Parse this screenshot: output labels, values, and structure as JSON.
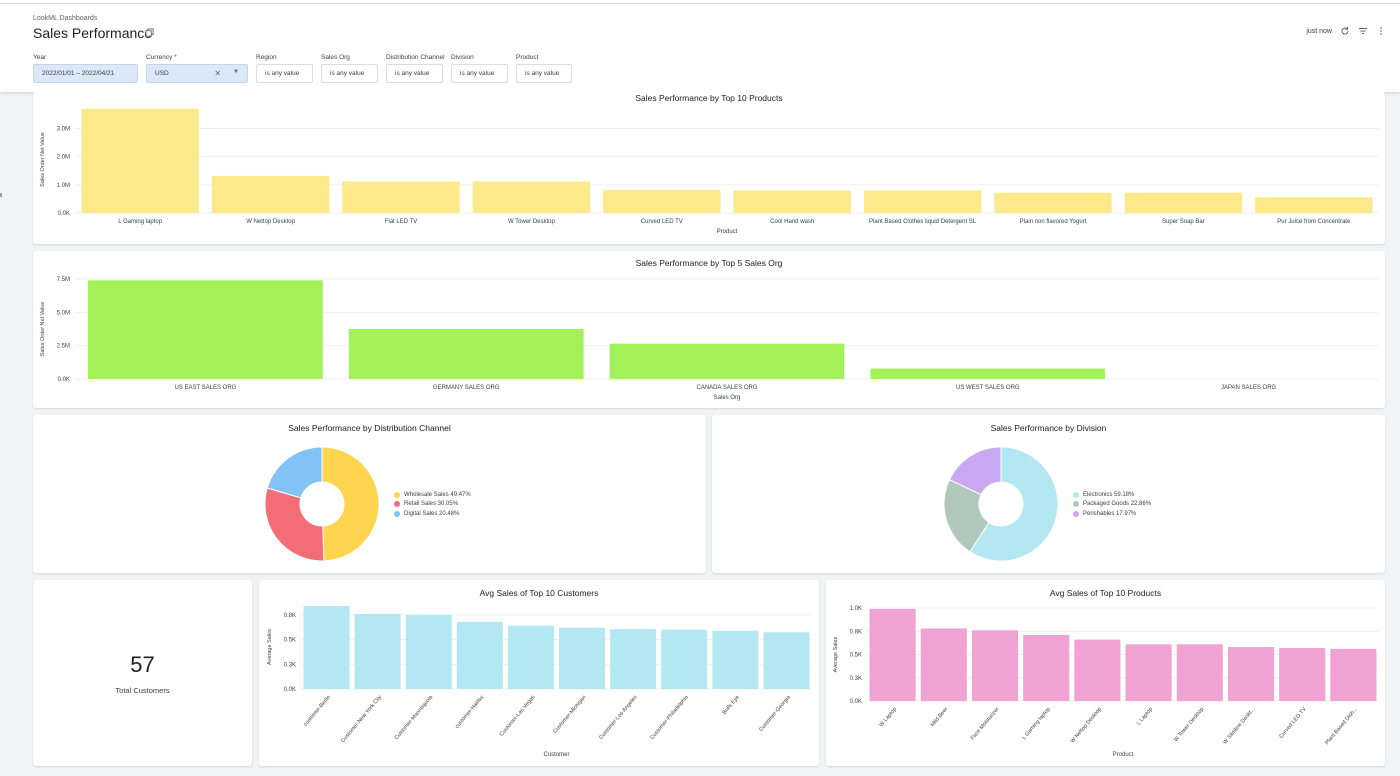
{
  "header": {
    "breadcrumb": "LookML Dashboards",
    "title": "Sales Performance",
    "updated": "just now"
  },
  "filters": [
    {
      "label": "Year",
      "value": "2022/01/01 – 2022/04/21",
      "required": false
    },
    {
      "label": "Currency",
      "value": "USD",
      "required": true
    },
    {
      "label": "Region",
      "value": "is any value",
      "required": false
    },
    {
      "label": "Sales Org",
      "value": "is any value",
      "required": false
    },
    {
      "label": "Distribution Channel",
      "value": "is any value",
      "required": false
    },
    {
      "label": "Division",
      "value": "is any value",
      "required": false
    },
    {
      "label": "Product",
      "value": "is any value",
      "required": false
    }
  ],
  "kpi": {
    "value": "57",
    "label": "Total Customers"
  },
  "colors": {
    "yellow": "#fde98a",
    "green": "#a4f25a",
    "cyan": "#b3e8f2",
    "pink": "#f0a3d2"
  },
  "chart_data": [
    {
      "id": "top10products",
      "type": "bar",
      "title": "Sales Performance by Top 10 Products",
      "xlabel": "Product",
      "ylabel": "Sales Order Net Value",
      "ticks": [
        "0.0K",
        "1.0M",
        "2.0M",
        "3.0M"
      ],
      "tick_values": [
        0,
        1000000,
        2000000,
        3000000
      ],
      "ylim": [
        0,
        3800000
      ],
      "categories": [
        "L Gaming laptop",
        "W Nettop Desktop",
        "Flat LED TV",
        "W Tower Desktop",
        "Curved LED TV",
        "Cool Hand wash",
        "Plant Based Clothes liquid Detergent SL",
        "Plain non flavored Yogurt",
        "Super Soap Bar",
        "Pur Juice from Concentrate"
      ],
      "values": [
        3700000,
        1320000,
        1120000,
        1120000,
        820000,
        800000,
        800000,
        720000,
        720000,
        560000
      ],
      "color": "#fde98a"
    },
    {
      "id": "top5salesorg",
      "type": "bar",
      "title": "Sales Performance by Top 5 Sales Org",
      "xlabel": "Sales Org",
      "ylabel": "Sales Order Net Value",
      "ticks": [
        "0.0K",
        "2.5M",
        "5.0M",
        "7.5M"
      ],
      "tick_values": [
        0,
        2500000,
        5000000,
        7500000
      ],
      "ylim": [
        0,
        7500000
      ],
      "categories": [
        "US EAST SALES ORG",
        "GERMANY SALES ORG",
        "CANADA SALES ORG",
        "US WEST SALES ORG",
        "JAPAN SALES ORG"
      ],
      "values": [
        7400000,
        3750000,
        2650000,
        780000,
        0
      ],
      "color": "#a4f25a"
    },
    {
      "id": "distchannel",
      "type": "pie",
      "title": "Sales Performance by Distribution Channel",
      "slices": [
        {
          "label": "Wholesale Sales 49.47%",
          "value": 49.47,
          "color": "#ffd54f"
        },
        {
          "label": "Retail Sales 30.05%",
          "value": 30.05,
          "color": "#f36d79"
        },
        {
          "label": "Digital Sales 20.48%",
          "value": 20.48,
          "color": "#82c3f5"
        }
      ]
    },
    {
      "id": "division",
      "type": "pie",
      "title": "Sales Performance by Division",
      "slices": [
        {
          "label": "Electronics 59.18%",
          "value": 59.18,
          "color": "#b3e8f2"
        },
        {
          "label": "Packaged Goods 22.86%",
          "value": 22.86,
          "color": "#b0c7bd"
        },
        {
          "label": "Perishables 17.97%",
          "value": 17.97,
          "color": "#c9a8f2"
        }
      ]
    },
    {
      "id": "avgcustomers",
      "type": "bar",
      "title": "Avg Sales of Top 10 Customers",
      "xlabel": "Customer",
      "ylabel": "Average Sales",
      "ticks": [
        "0.0K",
        "0.3K",
        "0.5K",
        "0.8K"
      ],
      "tick_values": [
        0,
        250,
        500,
        750
      ],
      "ylim": [
        0,
        850
      ],
      "categories": [
        "customer-Berlin",
        "Customer-New York City",
        "Customer-Mannequola",
        "customer-Halifax",
        "Customer-Las Vegas",
        "Customer-Michigan",
        "Customer-Los Angeles",
        "Customer-Philadelphia",
        "Bulls Eye",
        "Customer-Georgia"
      ],
      "values": [
        840,
        760,
        750,
        680,
        640,
        620,
        605,
        600,
        590,
        575
      ],
      "color": "#b3e8f2"
    },
    {
      "id": "avgproducts",
      "type": "bar",
      "title": "Avg Sales of Top 10 Products",
      "xlabel": "Product",
      "ylabel": "Average Sales",
      "ticks": [
        "0.0K",
        "0.3K",
        "0.5K",
        "0.8K",
        "1.0K"
      ],
      "tick_values": [
        0,
        250,
        500,
        750,
        1000
      ],
      "ylim": [
        0,
        1000
      ],
      "categories": [
        "W Laptop",
        "Mild Beer",
        "Face Moisturizer",
        "L Gaming laptop",
        "W Nettop Desktop",
        "L Laptop",
        "W Tower Desktop",
        "W Slimline Deskt...",
        "Curved LED TV",
        "Plant Based Dish..."
      ],
      "values": [
        990,
        780,
        760,
        710,
        660,
        610,
        610,
        580,
        570,
        560
      ],
      "color": "#f0a3d2"
    }
  ]
}
